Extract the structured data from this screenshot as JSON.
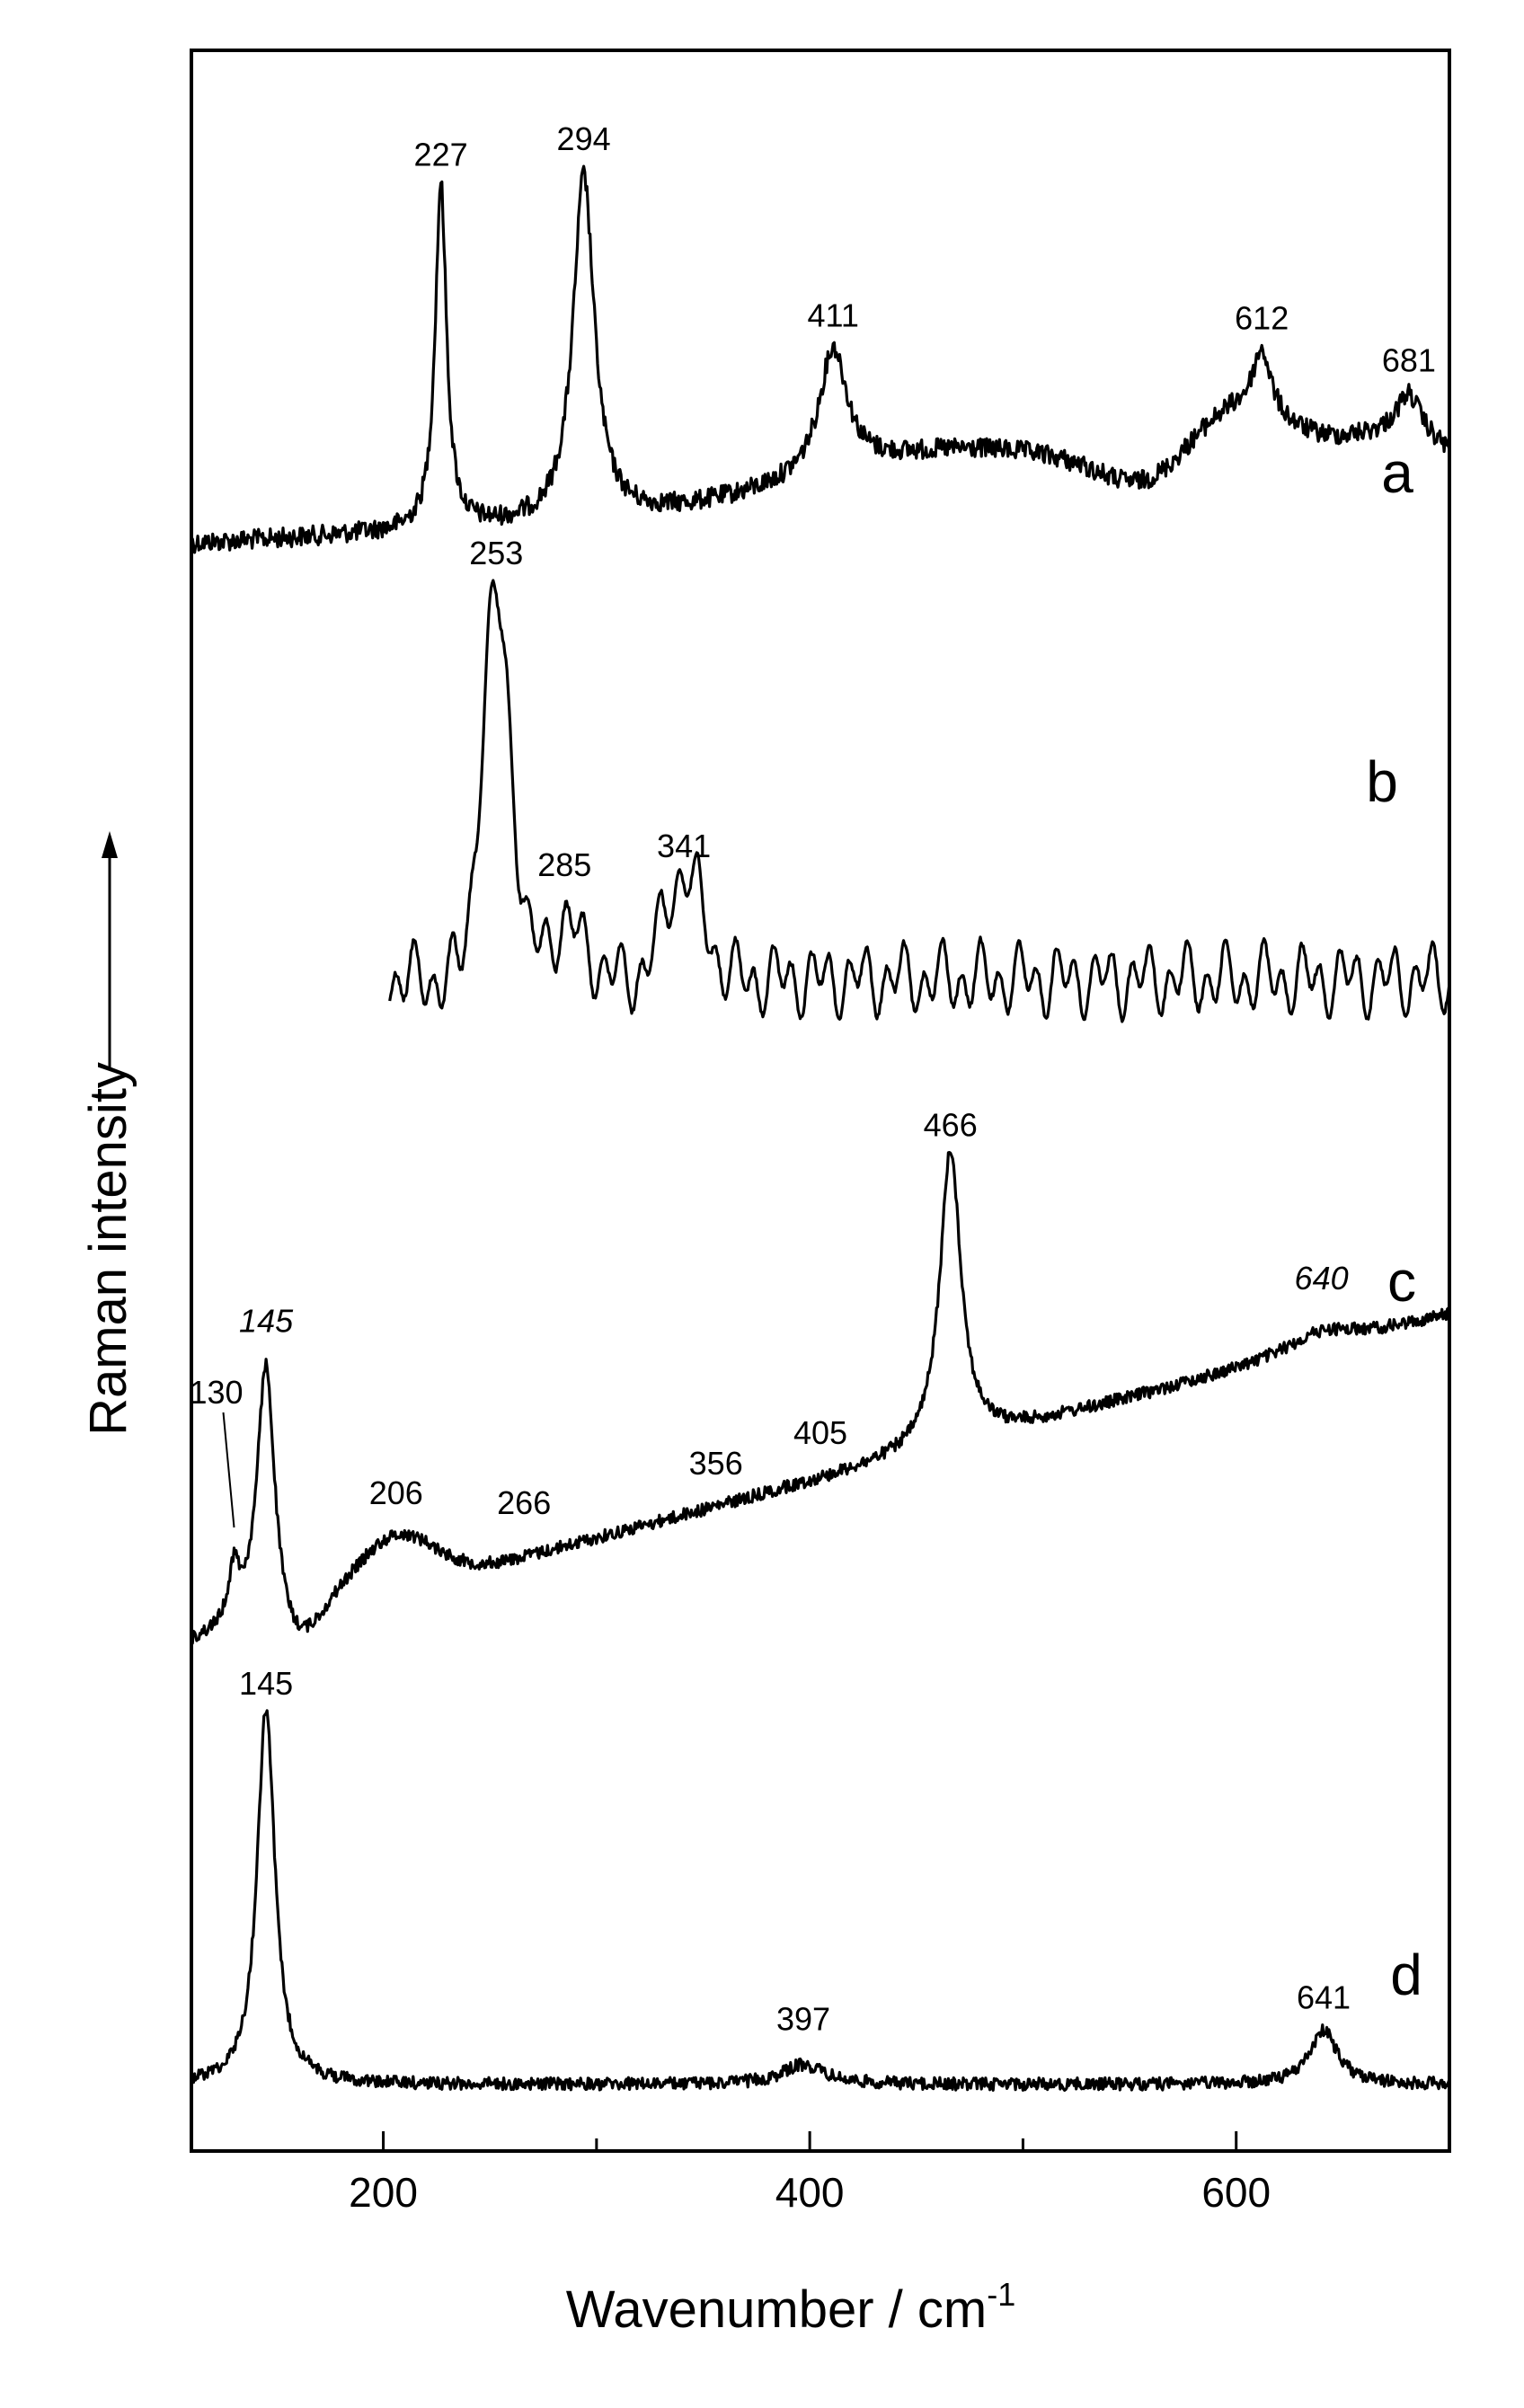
{
  "chart_data": {
    "type": "line",
    "xlabel": "Wavenumber / cm",
    "xlabel_superscript": "-1",
    "ylabel": "Raman intensity",
    "xlim": [
      110,
      700
    ],
    "x_ticks": [
      200,
      400,
      600
    ],
    "x_minor_ticks": [
      300,
      500,
      700
    ],
    "y_ticks_shown": false,
    "legend": "none",
    "series": [
      {
        "label": "a",
        "x_range": [
          110,
          700
        ],
        "peaks": [
          {
            "x": 227,
            "label": "227",
            "italic": false
          },
          {
            "x": 294,
            "label": "294",
            "italic": false
          },
          {
            "x": 411,
            "label": "411",
            "italic": false
          },
          {
            "x": 612,
            "label": "612",
            "italic": false
          },
          {
            "x": 681,
            "label": "681",
            "italic": false
          }
        ]
      },
      {
        "label": "b",
        "x_range": [
          203,
          700
        ],
        "peaks": [
          {
            "x": 253,
            "label": "253",
            "italic": false
          },
          {
            "x": 285,
            "label": "285",
            "italic": false
          },
          {
            "x": 341,
            "label": "341",
            "italic": false
          }
        ]
      },
      {
        "label": "c",
        "x_range": [
          110,
          700
        ],
        "peaks": [
          {
            "x": 130,
            "label": "130",
            "italic": false
          },
          {
            "x": 145,
            "label": "145",
            "italic": true
          },
          {
            "x": 206,
            "label": "206",
            "italic": false
          },
          {
            "x": 266,
            "label": "266",
            "italic": false
          },
          {
            "x": 356,
            "label": "356",
            "italic": false
          },
          {
            "x": 405,
            "label": "405",
            "italic": false
          },
          {
            "x": 466,
            "label": "466",
            "italic": false
          },
          {
            "x": 640,
            "label": "640",
            "italic": true
          }
        ]
      },
      {
        "label": "d",
        "x_range": [
          110,
          700
        ],
        "peaks": [
          {
            "x": 145,
            "label": "145",
            "italic": false
          },
          {
            "x": 397,
            "label": "397",
            "italic": false
          },
          {
            "x": 641,
            "label": "641",
            "italic": false
          }
        ]
      }
    ]
  }
}
